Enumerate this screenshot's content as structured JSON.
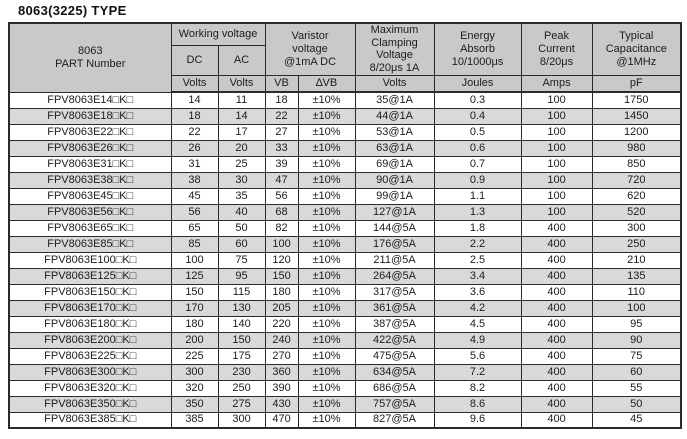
{
  "title": "8063(3225) TYPE",
  "table": {
    "header": {
      "part_number": "8063\nPART Number",
      "working_voltage": "Working voltage",
      "dc": "DC",
      "ac": "AC",
      "varistor_voltage": "Varistor\nvoltage\n@1mA DC",
      "max_clamping": "Maximum\nClamping\nVoltage\n8/20μs 1A",
      "energy_absorb": "Energy\nAbsorb\n10/1000μs",
      "peak_current": "Peak\nCurrent\n8/20μs",
      "typical_capacitance": "Typical\nCapacitance\n@1MHz",
      "units": [
        "Volts",
        "Volts",
        "VB",
        "∆VB",
        "Volts",
        "Joules",
        "Amps",
        "pF"
      ]
    },
    "columns": [
      "part_number",
      "dc_volts",
      "ac_volts",
      "vb",
      "delta_vb",
      "clamping_voltage",
      "energy_joules",
      "peak_amps",
      "capacitance_pf"
    ],
    "rows": [
      [
        "FPV8063E14□K□",
        "14",
        "11",
        "18",
        "±10%",
        "35@1A",
        "0.3",
        "100",
        "1750"
      ],
      [
        "FPV8063E18□K□",
        "18",
        "14",
        "22",
        "±10%",
        "44@1A",
        "0.4",
        "100",
        "1450"
      ],
      [
        "FPV8063E22□K□",
        "22",
        "17",
        "27",
        "±10%",
        "53@1A",
        "0.5",
        "100",
        "1200"
      ],
      [
        "FPV8063E26□K□",
        "26",
        "20",
        "33",
        "±10%",
        "63@1A",
        "0.6",
        "100",
        "980"
      ],
      [
        "FPV8063E31□K□",
        "31",
        "25",
        "39",
        "±10%",
        "69@1A",
        "0.7",
        "100",
        "850"
      ],
      [
        "FPV8063E38□K□",
        "38",
        "30",
        "47",
        "±10%",
        "90@1A",
        "0.9",
        "100",
        "720"
      ],
      [
        "FPV8063E45□K□",
        "45",
        "35",
        "56",
        "±10%",
        "99@1A",
        "1.1",
        "100",
        "620"
      ],
      [
        "FPV8063E56□K□",
        "56",
        "40",
        "68",
        "±10%",
        "127@1A",
        "1.3",
        "100",
        "520"
      ],
      [
        "FPV8063E65□K□",
        "65",
        "50",
        "82",
        "±10%",
        "144@5A",
        "1.8",
        "400",
        "300"
      ],
      [
        "FPV8063E85□K□",
        "85",
        "60",
        "100",
        "±10%",
        "176@5A",
        "2.2",
        "400",
        "250"
      ],
      [
        "FPV8063E100□K□",
        "100",
        "75",
        "120",
        "±10%",
        "211@5A",
        "2.5",
        "400",
        "210"
      ],
      [
        "FPV8063E125□K□",
        "125",
        "95",
        "150",
        "±10%",
        "264@5A",
        "3.4",
        "400",
        "135"
      ],
      [
        "FPV8063E150□K□",
        "150",
        "115",
        "180",
        "±10%",
        "317@5A",
        "3.6",
        "400",
        "110"
      ],
      [
        "FPV8063E170□K□",
        "170",
        "130",
        "205",
        "±10%",
        "361@5A",
        "4.2",
        "400",
        "100"
      ],
      [
        "FPV8063E180□K□",
        "180",
        "140",
        "220",
        "±10%",
        "387@5A",
        "4.5",
        "400",
        "95"
      ],
      [
        "FPV8063E200□K□",
        "200",
        "150",
        "240",
        "±10%",
        "422@5A",
        "4.9",
        "400",
        "90"
      ],
      [
        "FPV8063E225□K□",
        "225",
        "175",
        "270",
        "±10%",
        "475@5A",
        "5.6",
        "400",
        "75"
      ],
      [
        "FPV8063E300□K□",
        "300",
        "230",
        "360",
        "±10%",
        "634@5A",
        "7.2",
        "400",
        "60"
      ],
      [
        "FPV8063E320□K□",
        "320",
        "250",
        "390",
        "±10%",
        "686@5A",
        "8.2",
        "400",
        "55"
      ],
      [
        "FPV8063E350□K□",
        "350",
        "275",
        "430",
        "±10%",
        "757@5A",
        "8.6",
        "400",
        "50"
      ],
      [
        "FPV8063E385□K□",
        "385",
        "300",
        "470",
        "±10%",
        "827@5A",
        "9.6",
        "400",
        "45"
      ]
    ]
  },
  "colors": {
    "header_bg": "#c9c9c9",
    "alt_row_bg": "#d9d9d9",
    "border": "#2b2b2b",
    "text": "#1c1c1c"
  }
}
